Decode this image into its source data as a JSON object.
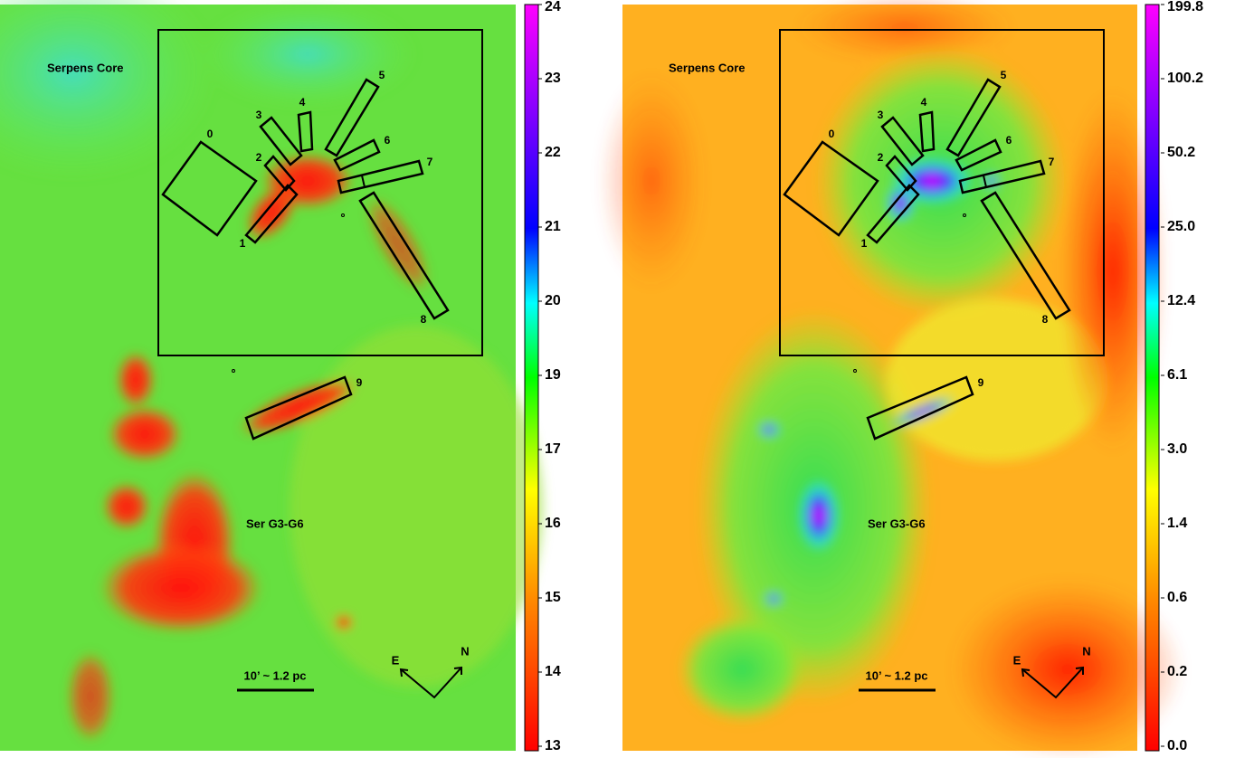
{
  "panels": [
    {
      "field_labels": [
        "Serpens Core",
        "Ser G3-G6"
      ],
      "regions": [
        "0",
        "1",
        "2",
        "3",
        "4",
        "5",
        "6",
        "7",
        "8",
        "9"
      ],
      "scale_bar": "10’ ~ 1.2 pc",
      "compass": [
        "E",
        "N"
      ],
      "colorbar": [
        "24",
        "23",
        "22",
        "21",
        "20",
        "19",
        "17",
        "16",
        "15",
        "14",
        "13"
      ]
    },
    {
      "field_labels": [
        "Serpens Core",
        "Ser G3-G6"
      ],
      "regions": [
        "0",
        "1",
        "2",
        "3",
        "4",
        "5",
        "6",
        "7",
        "8",
        "9"
      ],
      "scale_bar": "10’ ~ 1.2 pc",
      "compass": [
        "E",
        "N"
      ],
      "colorbar": [
        "199.8",
        "100.2",
        "50.2",
        "25.0",
        "12.4",
        "6.1",
        "3.0",
        "1.4",
        "0.6",
        "0.2",
        "0.0"
      ]
    }
  ]
}
